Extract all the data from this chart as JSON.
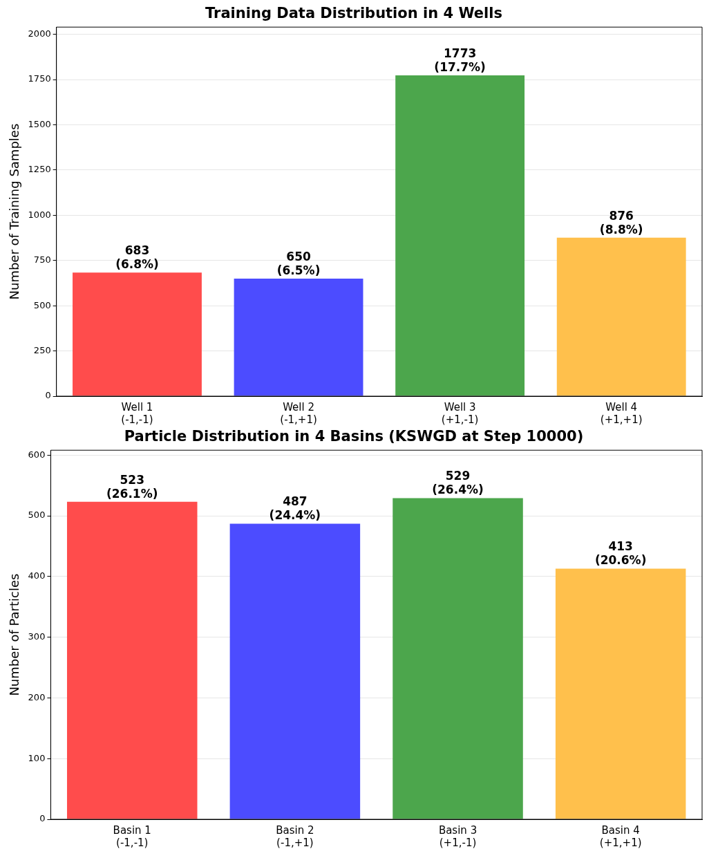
{
  "chart_data": [
    {
      "type": "bar",
      "title": "Training Data Distribution in 4 Wells",
      "ylabel": "Number of Training Samples",
      "categories": [
        "Well 1\n(-1,-1)",
        "Well 2\n(-1,+1)",
        "Well 3\n(+1,-1)",
        "Well 4\n(+1,+1)"
      ],
      "values": [
        683,
        650,
        1773,
        876
      ],
      "colors": [
        "#ff4c4c",
        "#4c4cff",
        "#4ca64c",
        "#ffc04c"
      ],
      "value_labels": [
        "683\n(6.8%)",
        "650\n(6.5%)",
        "1773\n(17.7%)",
        "876\n(8.8%)"
      ],
      "ylim": [
        0,
        2040
      ],
      "yticks": [
        0,
        250,
        500,
        750,
        1000,
        1250,
        1500,
        1750,
        2000
      ],
      "grid": "y",
      "legend": false
    },
    {
      "type": "bar",
      "title": "Particle Distribution in 4 Basins (KSWGD at Step 10000)",
      "ylabel": "Number of Particles",
      "categories": [
        "Basin 1\n(-1,-1)",
        "Basin 2\n(-1,+1)",
        "Basin 3\n(+1,-1)",
        "Basin 4\n(+1,+1)"
      ],
      "values": [
        523,
        487,
        529,
        413
      ],
      "colors": [
        "#ff4c4c",
        "#4c4cff",
        "#4ca64c",
        "#ffc04c"
      ],
      "value_labels": [
        "523\n(26.1%)",
        "487\n(24.4%)",
        "529\n(26.4%)",
        "413\n(20.6%)"
      ],
      "ylim": [
        0,
        608
      ],
      "yticks": [
        0,
        100,
        200,
        300,
        400,
        500,
        600
      ],
      "grid": "y",
      "legend": false
    }
  ]
}
